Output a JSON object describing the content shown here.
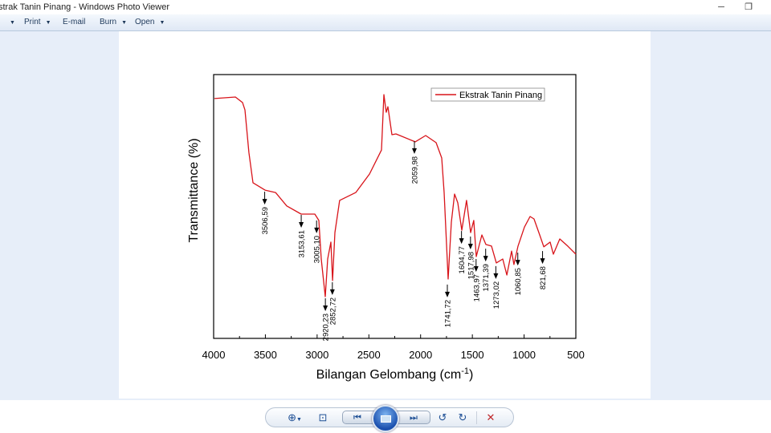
{
  "window": {
    "title": "Ekstrak Tanin Pinang - Windows Photo Viewer",
    "title_visible": "strak Tanin Pinang - Windows Photo Viewer",
    "minimize": "─",
    "restore": "❐"
  },
  "toolbar": {
    "items": [
      {
        "label": "",
        "dropdown": true
      },
      {
        "label": "Print",
        "dropdown": true
      },
      {
        "label": "E-mail",
        "dropdown": false
      },
      {
        "label": "Burn",
        "dropdown": true
      },
      {
        "label": "Open",
        "dropdown": true
      }
    ]
  },
  "controls": {
    "zoom": "zoom-icon",
    "fit": "actual-size-icon",
    "prev": "previous-icon",
    "slideshow": "slideshow-icon",
    "next": "next-icon",
    "rotate_ccw": "rotate-counterclockwise-icon",
    "rotate_cw": "rotate-clockwise-icon",
    "delete": "delete-icon",
    "delete_color": "#c0282b"
  },
  "chart_data": {
    "type": "line",
    "xlabel": "Bilangan Gelombang (cm",
    "xlabel_sup": "-1",
    "xlabel_end": ")",
    "ylabel": "Transmittance (%)",
    "xlim": [
      4000,
      500
    ],
    "x_reversed": true,
    "ylim": [
      0,
      100
    ],
    "y_ticks_labeled": false,
    "xticks": [
      "4000",
      "3500",
      "3000",
      "2500",
      "2000",
      "1500",
      "1000",
      "500"
    ],
    "legend": {
      "label": "Ekstrak Tanin Pinang",
      "placement": "top-right"
    },
    "grid": false,
    "series": [
      {
        "name": "Ekstrak Tanin Pinang",
        "color": "#d8141a",
        "x": [
          3992,
          3790,
          3721,
          3697,
          3659,
          3620,
          3503,
          3402,
          3294,
          3154,
          3022,
          2983,
          2960,
          2921,
          2898,
          2867,
          2851,
          2828,
          2782,
          2626,
          2494,
          2378,
          2355,
          2332,
          2316,
          2277,
          2238,
          2052,
          1951,
          1850,
          1796,
          1773,
          1734,
          1703,
          1672,
          1641,
          1602,
          1556,
          1517,
          1486,
          1462,
          1408,
          1369,
          1315,
          1268,
          1206,
          1167,
          1121,
          1098,
          1059,
          997,
          942,
          904,
          849,
          810,
          748,
          717,
          655,
          578,
          500
        ],
        "y": [
          90.9,
          91.5,
          89.4,
          86.6,
          70.5,
          59.0,
          56.2,
          55.3,
          50.2,
          47.1,
          47.1,
          44.7,
          30.1,
          15.8,
          30.1,
          36.5,
          21.9,
          40.1,
          52.3,
          55.3,
          62.3,
          71.4,
          92.4,
          85.7,
          87.8,
          77.2,
          77.5,
          74.5,
          76.9,
          74.2,
          68.4,
          55.3,
          22.5,
          44.1,
          54.7,
          51.4,
          41.0,
          52.3,
          40.1,
          44.7,
          31.0,
          39.2,
          35.6,
          35.0,
          28.6,
          30.1,
          24.0,
          33.1,
          28.0,
          35.0,
          42.2,
          46.2,
          45.3,
          39.2,
          34.7,
          36.5,
          31.9,
          37.7,
          35.0,
          31.9
        ]
      }
    ],
    "annotations": [
      {
        "label": "3506,59",
        "x": 3506.59,
        "y": 55.6
      },
      {
        "label": "3153,61",
        "x": 3153.61,
        "y": 46.8
      },
      {
        "label": "3005,10",
        "x": 3005.1,
        "y": 44.7
      },
      {
        "label": "2920,23",
        "x": 2920.23,
        "y": 15.2
      },
      {
        "label": "2852,72",
        "x": 2852.72,
        "y": 21.3
      },
      {
        "label": "2059,98",
        "x": 2059.98,
        "y": 74.8
      },
      {
        "label": "1741,72",
        "x": 1741.72,
        "y": 20.4
      },
      {
        "label": "1604,77",
        "x": 1604.77,
        "y": 40.7
      },
      {
        "label": "1517,98",
        "x": 1517.98,
        "y": 38.6
      },
      {
        "label": "1463,97",
        "x": 1463.97,
        "y": 30.1
      },
      {
        "label": "1371,39",
        "x": 1371.39,
        "y": 34.0
      },
      {
        "label": "1273,02",
        "x": 1273.02,
        "y": 27.4
      },
      {
        "label": "1060,85",
        "x": 1060.85,
        "y": 32.5
      },
      {
        "label": "821,68",
        "x": 821.68,
        "y": 33.1
      }
    ]
  }
}
